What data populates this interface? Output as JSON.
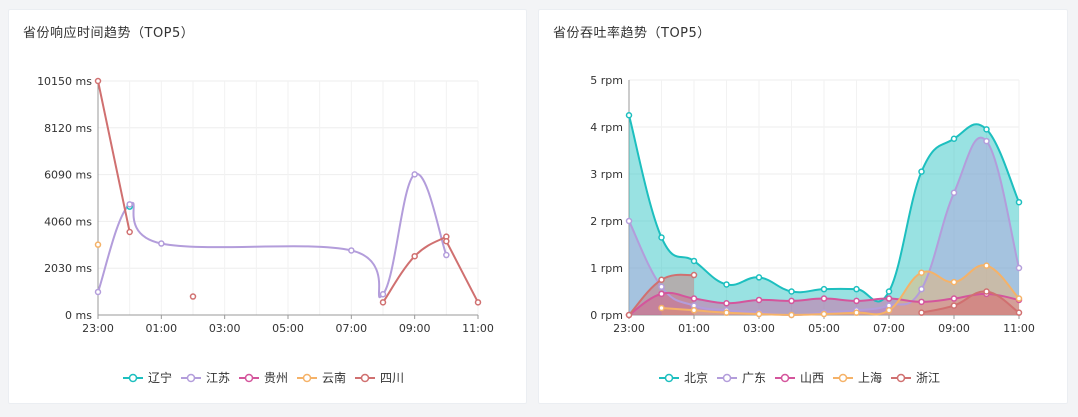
{
  "charts": [
    {
      "id": "left",
      "title": "省份响应时间趋势（TOP5）",
      "type": "line",
      "x_labels": [
        "23:00",
        "01:00",
        "03:00",
        "05:00",
        "07:00",
        "09:00",
        "11:00"
      ],
      "x_range": [
        23,
        35
      ],
      "y_ticks": [
        0,
        2030,
        4060,
        6090,
        8120,
        10150
      ],
      "y_tick_labels": [
        "0 ms",
        "2030 ms",
        "4060 ms",
        "6090 ms",
        "8120 ms",
        "10150 ms"
      ],
      "ylim": [
        0,
        10150
      ],
      "area": false,
      "series": [
        {
          "name": "辽宁",
          "color": "#1dbfbf",
          "points": [
            [
              24,
              4700
            ]
          ]
        },
        {
          "name": "江苏",
          "color": "#b39ddb",
          "points": [
            [
              23,
              1000
            ],
            [
              24,
              4800
            ],
            [
              25,
              3100
            ],
            [
              31,
              2800
            ],
            [
              32,
              900
            ],
            [
              33,
              6100
            ],
            [
              34,
              2600
            ]
          ]
        },
        {
          "name": "贵州",
          "color": "#d4559c",
          "points": []
        },
        {
          "name": "云南",
          "color": "#f5b268",
          "points": [
            [
              23,
              3050
            ]
          ]
        },
        {
          "name": "四川",
          "color": "#d07070",
          "points": [
            [
              23,
              10150
            ],
            [
              24,
              3600
            ]
          ],
          "extra": [
            [
              [
                26,
                800
              ]
            ],
            [
              [
                32,
                550
              ],
              [
                33,
                2550
              ],
              [
                34,
                3400
              ]
            ],
            [
              [
                34,
                3200
              ],
              [
                35,
                550
              ]
            ]
          ]
        }
      ]
    },
    {
      "id": "right",
      "title": "省份吞吐率趋势（TOP5）",
      "type": "area",
      "x_labels": [
        "23:00",
        "01:00",
        "03:00",
        "05:00",
        "07:00",
        "09:00",
        "11:00"
      ],
      "x_range": [
        23,
        35
      ],
      "y_ticks": [
        0,
        1,
        2,
        3,
        4,
        5
      ],
      "y_tick_labels": [
        "0 rpm",
        "1 rpm",
        "2 rpm",
        "3 rpm",
        "4 rpm",
        "5 rpm"
      ],
      "ylim": [
        0,
        5
      ],
      "area": true,
      "series": [
        {
          "name": "北京",
          "color": "#1dbfbf",
          "points": [
            [
              23,
              4.25
            ],
            [
              24,
              1.65
            ],
            [
              25,
              1.15
            ],
            [
              26,
              0.65
            ],
            [
              27,
              0.8
            ],
            [
              28,
              0.5
            ],
            [
              29,
              0.55
            ],
            [
              30,
              0.55
            ],
            [
              31,
              0.5
            ],
            [
              32,
              3.05
            ],
            [
              33,
              3.75
            ],
            [
              34,
              3.95
            ],
            [
              35,
              2.4
            ]
          ]
        },
        {
          "name": "广东",
          "color": "#b39ddb",
          "points": [
            [
              23,
              2.0
            ],
            [
              24,
              0.6
            ],
            [
              25,
              0.2
            ],
            [
              26,
              0.1
            ],
            [
              27,
              0.05
            ],
            [
              28,
              0.0
            ],
            [
              29,
              0.05
            ],
            [
              30,
              0.1
            ],
            [
              31,
              0.2
            ],
            [
              32,
              0.55
            ],
            [
              33,
              2.6
            ],
            [
              34,
              3.7
            ],
            [
              35,
              1.0
            ]
          ]
        },
        {
          "name": "山西",
          "color": "#d4559c",
          "points": [
            [
              23,
              0.0
            ],
            [
              24,
              0.45
            ],
            [
              25,
              0.35
            ],
            [
              26,
              0.25
            ],
            [
              27,
              0.32
            ],
            [
              28,
              0.3
            ],
            [
              29,
              0.35
            ],
            [
              30,
              0.3
            ],
            [
              31,
              0.35
            ],
            [
              32,
              0.28
            ],
            [
              33,
              0.35
            ],
            [
              34,
              0.45
            ],
            [
              35,
              0.32
            ]
          ]
        },
        {
          "name": "上海",
          "color": "#f5b268",
          "points": [
            [
              24,
              0.15
            ],
            [
              25,
              0.1
            ],
            [
              26,
              0.05
            ],
            [
              27,
              0.02
            ],
            [
              28,
              0.0
            ],
            [
              29,
              0.02
            ],
            [
              30,
              0.05
            ],
            [
              31,
              0.1
            ],
            [
              32,
              0.9
            ],
            [
              33,
              0.7
            ],
            [
              34,
              1.05
            ],
            [
              35,
              0.35
            ]
          ]
        },
        {
          "name": "浙江",
          "color": "#d07070",
          "points": [
            [
              23,
              0.0
            ],
            [
              24,
              0.75
            ],
            [
              25,
              0.85
            ]
          ],
          "extra": [
            [
              [
                32,
                0.05
              ],
              [
                33,
                0.2
              ],
              [
                34,
                0.5
              ],
              [
                35,
                0.05
              ]
            ]
          ]
        }
      ]
    }
  ]
}
